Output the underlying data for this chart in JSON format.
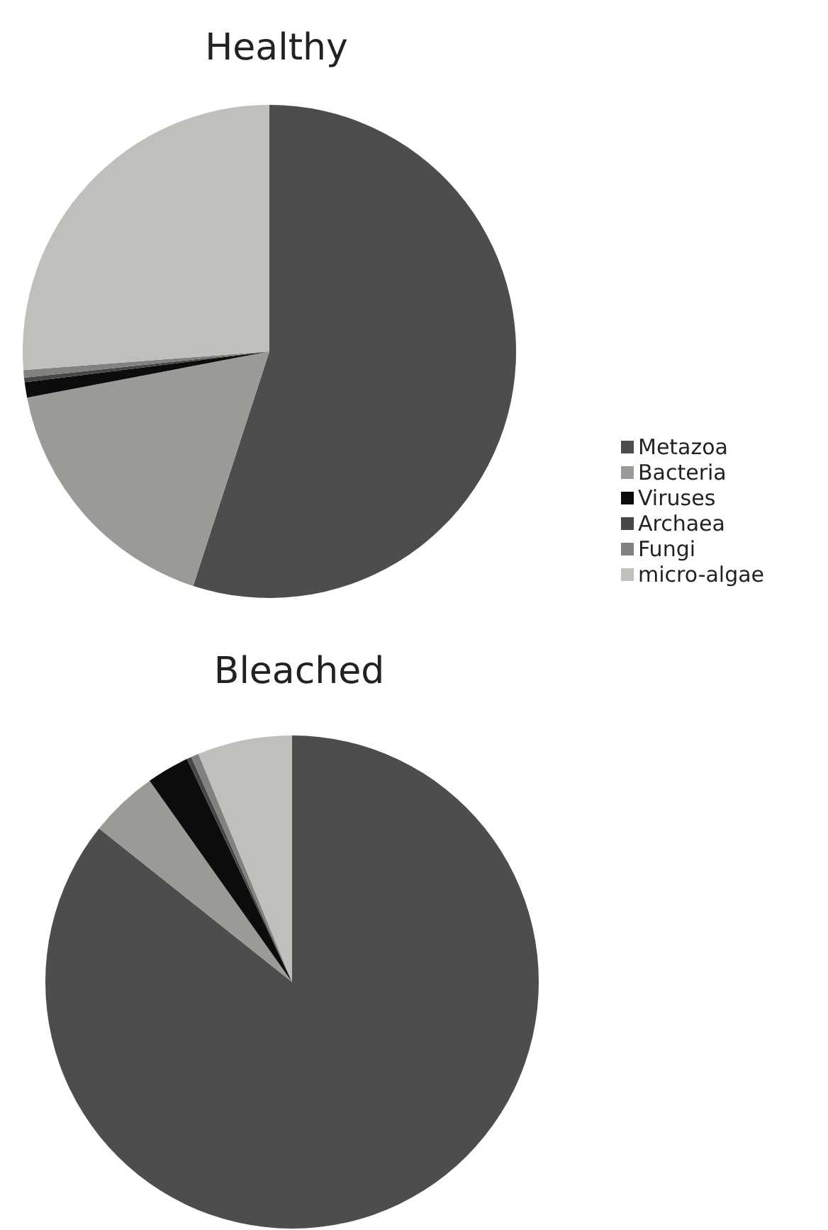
{
  "chart_data": {
    "type": "pie",
    "categories": [
      "Metazoa",
      "Bacteria",
      "Viruses",
      "Archaea",
      "Fungi",
      "micro-algae"
    ],
    "colors": [
      "#4d4d4d",
      "#9a9b97",
      "#0b0c0c",
      "#474747",
      "#808280",
      "#bfc0bc"
    ],
    "legend": "right",
    "series": [
      {
        "name": "Healthy",
        "values": [
          55,
          17,
          1,
          0.3,
          0.5,
          26.2
        ]
      },
      {
        "name": "Bleached",
        "values": [
          85.7,
          4.5,
          2.8,
          0.3,
          0.5,
          6.2
        ]
      }
    ]
  }
}
